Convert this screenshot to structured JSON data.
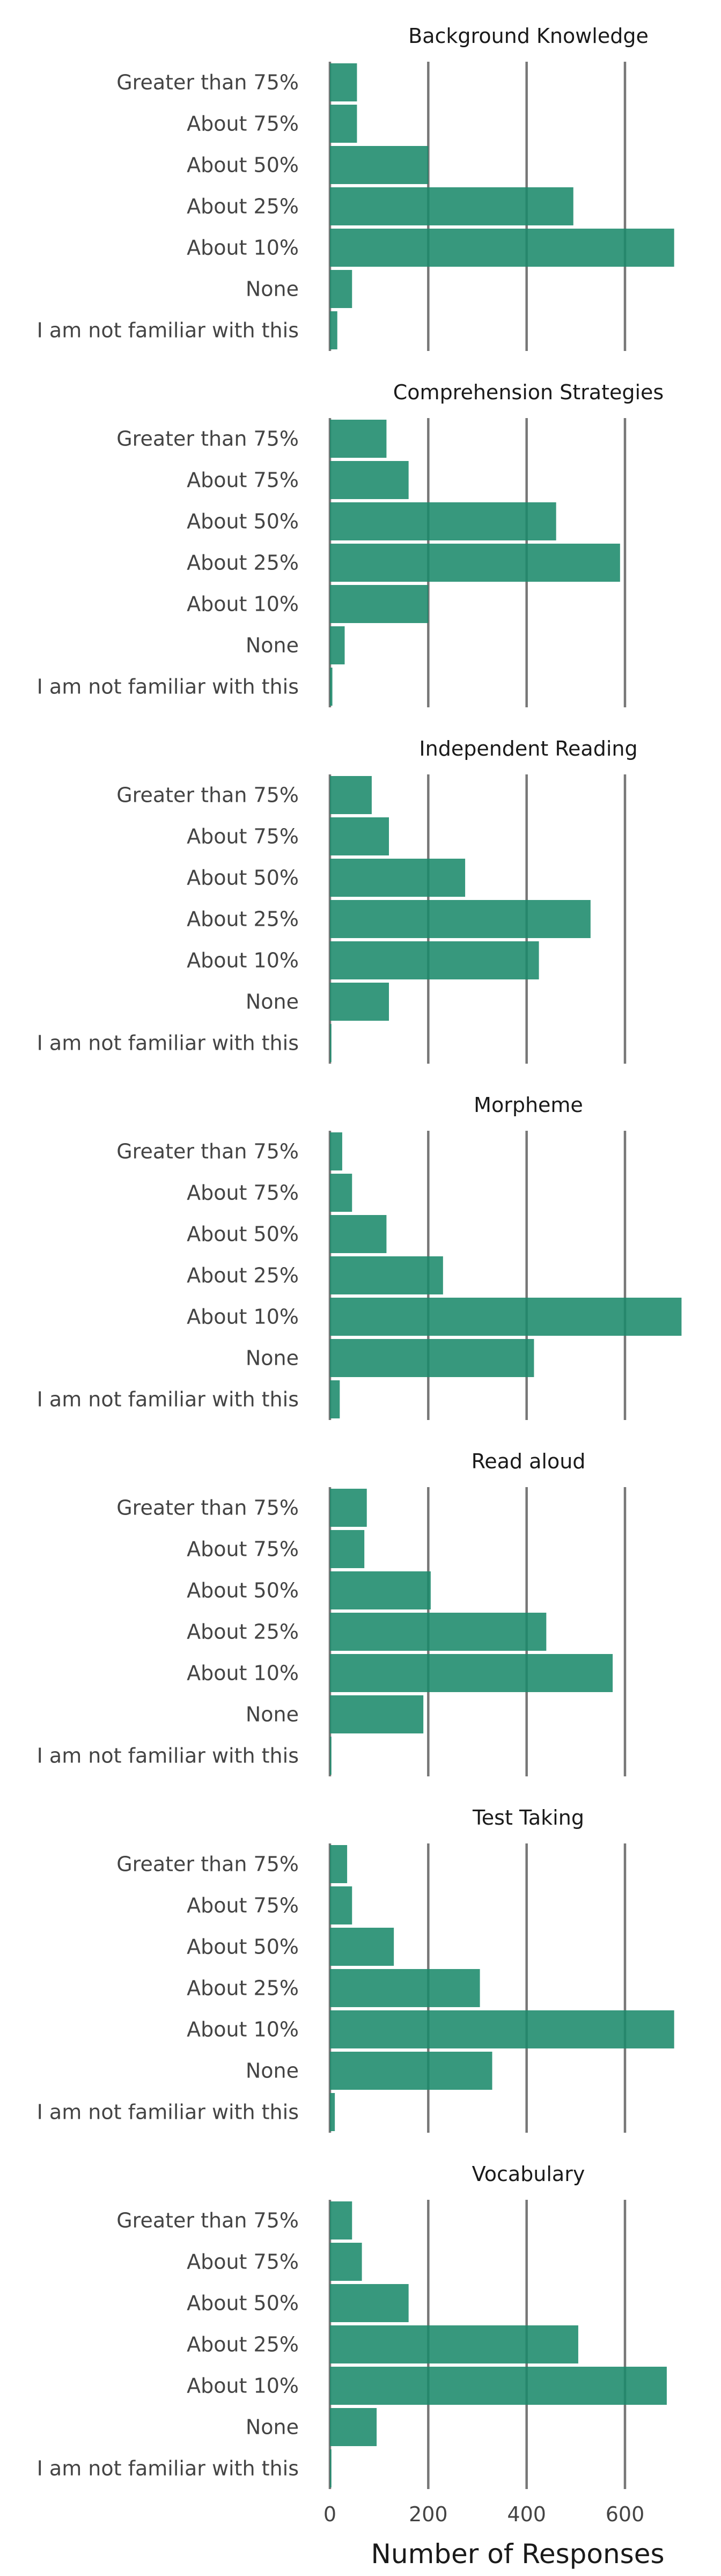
{
  "chart_data": {
    "type": "bar",
    "orientation": "horizontal",
    "facets": [
      {
        "title": "Background Knowledge",
        "categories": [
          "Greater than 75%",
          "About 75%",
          "About 50%",
          "About 25%",
          "About 10%",
          "None",
          "I am not familiar with this"
        ],
        "values": [
          55,
          55,
          200,
          495,
          700,
          45,
          15
        ]
      },
      {
        "title": "Comprehension Strategies",
        "categories": [
          "Greater than 75%",
          "About 75%",
          "About 50%",
          "About 25%",
          "About 10%",
          "None",
          "I am not familiar with this"
        ],
        "values": [
          115,
          160,
          460,
          590,
          200,
          30,
          5
        ]
      },
      {
        "title": "Independent Reading",
        "categories": [
          "Greater than 75%",
          "About 75%",
          "About 50%",
          "About 25%",
          "About 10%",
          "None",
          "I am not familiar with this"
        ],
        "values": [
          85,
          120,
          275,
          530,
          425,
          120,
          3
        ]
      },
      {
        "title": "Morpheme",
        "categories": [
          "Greater than 75%",
          "About 75%",
          "About 50%",
          "About 25%",
          "About 10%",
          "None",
          "I am not familiar with this"
        ],
        "values": [
          25,
          45,
          115,
          230,
          715,
          415,
          20
        ]
      },
      {
        "title": "Read aloud",
        "categories": [
          "Greater than 75%",
          "About 75%",
          "About 50%",
          "About 25%",
          "About 10%",
          "None",
          "I am not familiar with this"
        ],
        "values": [
          75,
          70,
          205,
          440,
          575,
          190,
          3
        ]
      },
      {
        "title": "Test Taking",
        "categories": [
          "Greater than 75%",
          "About 75%",
          "About 50%",
          "About 25%",
          "About 10%",
          "None",
          "I am not familiar with this"
        ],
        "values": [
          35,
          45,
          130,
          305,
          700,
          330,
          10
        ]
      },
      {
        "title": "Vocabulary",
        "categories": [
          "Greater than 75%",
          "About 75%",
          "About 50%",
          "About 25%",
          "About 10%",
          "None",
          "I am not familiar with this"
        ],
        "values": [
          45,
          65,
          160,
          505,
          685,
          95,
          3
        ]
      }
    ],
    "xlabel": "Number of Responses",
    "xlim": [
      0,
      720
    ],
    "xticks": [
      0,
      200,
      400,
      600
    ],
    "grid": "vertical",
    "bar_color": "#1b8a6b"
  }
}
